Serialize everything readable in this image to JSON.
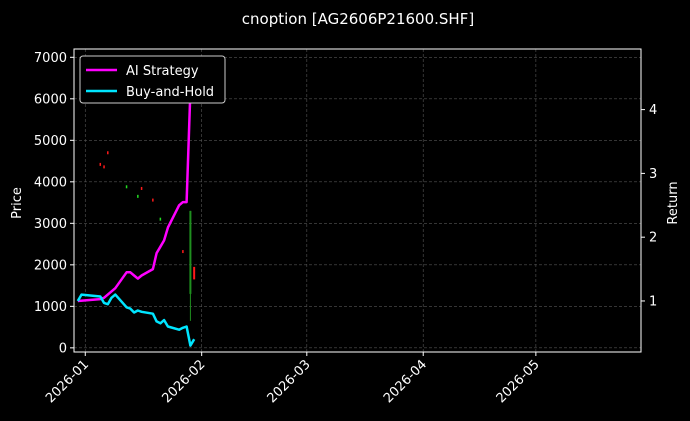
{
  "chart_data": {
    "type": "line",
    "title": "cnoption [AG2606P21600.SHF]",
    "xlabel": "",
    "ylabel": "Price",
    "y2label": "Return",
    "x_ticks": [
      "2026-01",
      "2026-02",
      "2026-03",
      "2026-04",
      "2026-05"
    ],
    "x_range": [
      "2025-12-29",
      "2026-05-29"
    ],
    "ylim": [
      -100,
      7200
    ],
    "y_ticks": [
      0,
      1000,
      2000,
      3000,
      4000,
      5000,
      6000,
      7000
    ],
    "y2lim": [
      0.2,
      4.95
    ],
    "y2_ticks": [
      1,
      2,
      3,
      4
    ],
    "grid": true,
    "legend": {
      "position": "top-left",
      "entries": [
        {
          "name": "AI Strategy",
          "color": "#ff00ff"
        },
        {
          "name": "Buy-and-Hold",
          "color": "#00e5ff"
        }
      ]
    },
    "series": [
      {
        "name": "AI Strategy",
        "axis": "right",
        "color": "#ff00ff",
        "x": [
          "2025-12-30",
          "2026-01-05",
          "2026-01-06",
          "2026-01-07",
          "2026-01-08",
          "2026-01-09",
          "2026-01-12",
          "2026-01-13",
          "2026-01-14",
          "2026-01-15",
          "2026-01-16",
          "2026-01-19",
          "2026-01-20",
          "2026-01-21",
          "2026-01-22",
          "2026-01-23",
          "2026-01-26",
          "2026-01-27",
          "2026-01-28",
          "2026-01-29"
        ],
        "values": [
          1.0,
          1.03,
          1.05,
          1.1,
          1.15,
          1.2,
          1.45,
          1.45,
          1.4,
          1.35,
          1.4,
          1.5,
          1.75,
          1.85,
          1.95,
          2.15,
          2.5,
          2.55,
          2.55,
          4.3
        ]
      },
      {
        "name": "Buy-and-Hold",
        "axis": "right",
        "color": "#00e5ff",
        "x": [
          "2025-12-30",
          "2025-12-31",
          "2026-01-05",
          "2026-01-06",
          "2026-01-07",
          "2026-01-08",
          "2026-01-09",
          "2026-01-12",
          "2026-01-13",
          "2026-01-14",
          "2026-01-15",
          "2026-01-16",
          "2026-01-19",
          "2026-01-20",
          "2026-01-21",
          "2026-01-22",
          "2026-01-23",
          "2026-01-26",
          "2026-01-27",
          "2026-01-28",
          "2026-01-29",
          "2026-01-30"
        ],
        "values": [
          1.0,
          1.1,
          1.07,
          0.97,
          0.95,
          1.05,
          1.1,
          0.9,
          0.88,
          0.82,
          0.85,
          0.83,
          0.8,
          0.68,
          0.65,
          0.7,
          0.6,
          0.55,
          0.58,
          0.6,
          0.3,
          0.4
        ]
      }
    ],
    "candles": [
      {
        "x": "2026-01-05",
        "value": 4420,
        "color": "#ff1a1a"
      },
      {
        "x": "2026-01-06",
        "value": 4360,
        "color": "#ff1a1a"
      },
      {
        "x": "2026-01-07",
        "value": 4700,
        "color": "#ff1a1a"
      },
      {
        "x": "2026-01-12",
        "value": 3880,
        "color": "#22dd22"
      },
      {
        "x": "2026-01-15",
        "value": 3650,
        "color": "#22dd22"
      },
      {
        "x": "2026-01-16",
        "value": 3840,
        "color": "#ff1a1a"
      },
      {
        "x": "2026-01-19",
        "value": 3560,
        "color": "#ff1a1a"
      },
      {
        "x": "2026-01-21",
        "value": 3100,
        "color": "#22dd22"
      },
      {
        "x": "2026-01-23",
        "value": 2900,
        "color": "#ff1a1a"
      },
      {
        "x": "2026-01-27",
        "value": 2320,
        "color": "#ff1a1a"
      }
    ],
    "bodies": [
      {
        "x": "2026-01-29",
        "open": 3300,
        "close": 1300,
        "low": 650,
        "high": 3300,
        "color": "#1f8f1f"
      },
      {
        "x": "2026-01-30",
        "open": 1950,
        "close": 1650,
        "low": 1650,
        "high": 1950,
        "color": "#ff1a1a"
      }
    ]
  }
}
